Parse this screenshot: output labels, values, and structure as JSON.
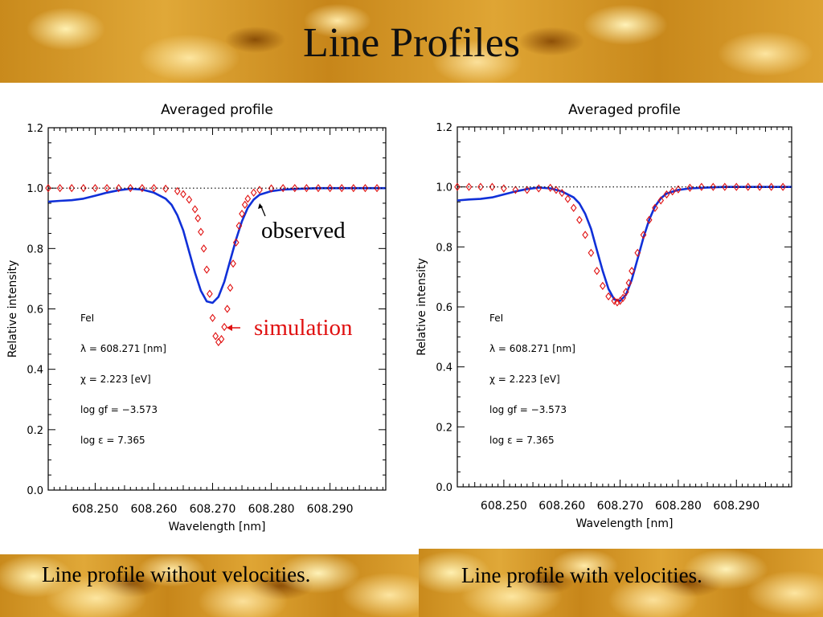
{
  "slide": {
    "title": "Line Profiles",
    "caption_left": "Line profile without velocities.",
    "caption_right": "Line profile with velocities."
  },
  "annotations": {
    "observed": "observed",
    "simulation": "simulation"
  },
  "colors": {
    "observed_line": "#1030d8",
    "simulation_marker": "#e01010",
    "simulation_label": "#e01010",
    "continuum_dotted": "#000000"
  },
  "chart_data": [
    {
      "type": "line",
      "title": "Averaged profile",
      "xlabel": "Wavelength [nm]",
      "ylabel": "Relative intensity",
      "xlim": [
        608.242,
        608.2995
      ],
      "ylim": [
        0.0,
        1.2
      ],
      "xticks": [
        "608.250",
        "608.260",
        "608.270",
        "608.280",
        "608.290"
      ],
      "yticks": [
        "0.0",
        "0.2",
        "0.4",
        "0.6",
        "0.8",
        "1.0",
        "1.2"
      ],
      "grid": false,
      "info_text": [
        "FeI",
        "λ = 608.271 [nm]",
        "χ =  2.223 [eV]",
        "log gf = −3.573",
        "log ε =  7.365"
      ],
      "series": [
        {
          "style": "solid-line",
          "x": [
            608.242,
            608.244,
            608.246,
            608.248,
            608.25,
            608.252,
            608.254,
            608.256,
            608.258,
            608.26,
            608.262,
            608.263,
            608.264,
            608.265,
            608.266,
            608.267,
            608.268,
            608.269,
            608.27,
            608.271,
            608.272,
            608.273,
            608.274,
            608.275,
            608.276,
            608.277,
            608.278,
            608.28,
            608.282,
            608.285,
            608.288,
            608.291,
            608.294,
            608.2995
          ],
          "y": [
            0.955,
            0.958,
            0.96,
            0.965,
            0.975,
            0.985,
            0.993,
            0.998,
            0.995,
            0.985,
            0.965,
            0.945,
            0.91,
            0.86,
            0.79,
            0.72,
            0.66,
            0.625,
            0.62,
            0.64,
            0.69,
            0.76,
            0.83,
            0.89,
            0.935,
            0.962,
            0.978,
            0.99,
            0.995,
            0.998,
            1.0,
            1.0,
            1.0,
            1.0
          ]
        },
        {
          "style": "diamond-markers",
          "x": [
            608.242,
            608.244,
            608.246,
            608.248,
            608.25,
            608.252,
            608.254,
            608.256,
            608.258,
            608.26,
            608.262,
            608.264,
            608.265,
            608.266,
            608.267,
            608.2675,
            608.268,
            608.2685,
            608.269,
            608.2695,
            608.27,
            608.2705,
            608.271,
            608.2715,
            608.272,
            608.2725,
            608.273,
            608.2735,
            608.274,
            608.2745,
            608.275,
            608.2755,
            608.276,
            608.277,
            608.278,
            608.28,
            608.282,
            608.284,
            608.286,
            608.288,
            608.29,
            608.292,
            608.294,
            608.296,
            608.298
          ],
          "y": [
            1.0,
            1.0,
            1.0,
            1.0,
            1.0,
            1.0,
            1.0,
            1.0,
            1.0,
            1.0,
            0.998,
            0.99,
            0.98,
            0.962,
            0.93,
            0.9,
            0.855,
            0.8,
            0.73,
            0.65,
            0.57,
            0.51,
            0.49,
            0.5,
            0.54,
            0.6,
            0.67,
            0.75,
            0.82,
            0.875,
            0.915,
            0.945,
            0.965,
            0.985,
            0.994,
            0.999,
            1.0,
            1.0,
            1.0,
            1.0,
            1.0,
            1.0,
            1.0,
            1.0,
            1.0
          ]
        },
        {
          "style": "dotted-line",
          "x": [
            608.242,
            608.2995
          ],
          "y": [
            1.0,
            1.0
          ]
        }
      ]
    },
    {
      "type": "line",
      "title": "Averaged profile",
      "xlabel": "Wavelength [nm]",
      "ylabel": "Relative intensity",
      "xlim": [
        608.242,
        608.2995
      ],
      "ylim": [
        0.0,
        1.2
      ],
      "xticks": [
        "608.250",
        "608.260",
        "608.270",
        "608.280",
        "608.290"
      ],
      "yticks": [
        "0.0",
        "0.2",
        "0.4",
        "0.6",
        "0.8",
        "1.0",
        "1.2"
      ],
      "grid": false,
      "info_text": [
        "FeI",
        "λ = 608.271 [nm]",
        "χ =  2.223 [eV]",
        "log gf = −3.573",
        "log ε =  7.365"
      ],
      "series": [
        {
          "style": "solid-line",
          "x": [
            608.242,
            608.244,
            608.246,
            608.248,
            608.25,
            608.252,
            608.254,
            608.256,
            608.258,
            608.26,
            608.262,
            608.263,
            608.264,
            608.265,
            608.266,
            608.267,
            608.268,
            608.269,
            608.27,
            608.271,
            608.272,
            608.273,
            608.274,
            608.275,
            608.276,
            608.277,
            608.278,
            608.28,
            608.282,
            608.285,
            608.288,
            608.291,
            608.294,
            608.2995
          ],
          "y": [
            0.955,
            0.958,
            0.96,
            0.965,
            0.975,
            0.985,
            0.993,
            0.998,
            0.995,
            0.985,
            0.965,
            0.945,
            0.91,
            0.86,
            0.79,
            0.72,
            0.66,
            0.625,
            0.62,
            0.64,
            0.69,
            0.76,
            0.83,
            0.89,
            0.935,
            0.962,
            0.978,
            0.99,
            0.995,
            0.998,
            1.0,
            1.0,
            1.0,
            1.0
          ]
        },
        {
          "style": "diamond-markers",
          "x": [
            608.242,
            608.244,
            608.246,
            608.248,
            608.25,
            608.252,
            608.254,
            608.256,
            608.258,
            608.259,
            608.26,
            608.261,
            608.262,
            608.263,
            608.264,
            608.265,
            608.266,
            608.267,
            608.268,
            608.269,
            608.2695,
            608.27,
            608.2705,
            608.271,
            608.2715,
            608.272,
            608.273,
            608.274,
            608.275,
            608.276,
            608.277,
            608.278,
            608.279,
            608.28,
            608.282,
            608.284,
            608.286,
            608.288,
            608.29,
            608.292,
            608.294,
            608.296,
            608.298
          ],
          "y": [
            1.0,
            1.0,
            1.0,
            1.0,
            0.995,
            0.99,
            0.99,
            0.995,
            0.997,
            0.99,
            0.98,
            0.96,
            0.93,
            0.89,
            0.84,
            0.78,
            0.72,
            0.67,
            0.635,
            0.62,
            0.615,
            0.62,
            0.63,
            0.65,
            0.68,
            0.72,
            0.78,
            0.84,
            0.89,
            0.93,
            0.955,
            0.975,
            0.985,
            0.992,
            0.997,
            1.0,
            1.0,
            1.0,
            1.0,
            1.0,
            1.0,
            1.0,
            1.0
          ]
        },
        {
          "style": "dotted-line",
          "x": [
            608.242,
            608.2995
          ],
          "y": [
            1.0,
            1.0
          ]
        }
      ]
    }
  ]
}
